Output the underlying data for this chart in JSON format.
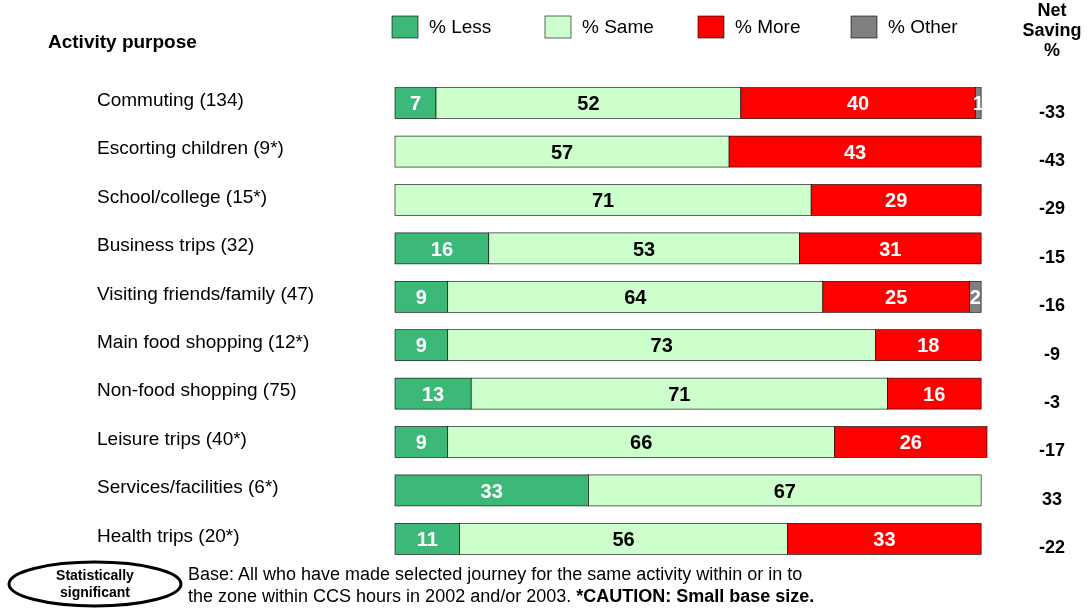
{
  "chart_data": {
    "type": "bar",
    "orientation": "horizontal",
    "stacked": true,
    "ylabel": "Activity purpose",
    "categories": [
      "Commuting (134)",
      "Escorting children (9*)",
      "School/college (15*)",
      "Business trips (32)",
      "Visiting friends/family (47)",
      "Main food shopping (12*)",
      "Non-food shopping (75)",
      "Leisure trips  (40*)",
      "Services/facilities (6*)",
      "Health trips (20*)"
    ],
    "xlim": [
      0,
      101
    ],
    "tick_labels": "y",
    "legend": "top",
    "data_labels": true,
    "series": [
      {
        "name": "% Less",
        "color": "#3cb878",
        "values": [
          7,
          null,
          null,
          16,
          9,
          9,
          13,
          9,
          33,
          11
        ]
      },
      {
        "name": "% Same",
        "color": "#ccffcc",
        "values": [
          52,
          57,
          71,
          53,
          64,
          73,
          71,
          66,
          67,
          56
        ]
      },
      {
        "name": "% More",
        "color": "#ff0000",
        "values": [
          40,
          43,
          29,
          31,
          25,
          18,
          16,
          26,
          null,
          33
        ]
      },
      {
        "name": "% Other",
        "color": "#808080",
        "values": [
          1,
          null,
          null,
          null,
          2,
          null,
          null,
          null,
          null,
          null
        ]
      }
    ],
    "annotations": [
      "Net Saving %",
      "Statistically significant",
      "Base: All who have made selected journey for the same activity within or in to the zone within CCS hours in 2002 and/or 2003.",
      "*CAUTION: Small base size.",
      "-33",
      "-43",
      "-29",
      "-15",
      "-16",
      "-9",
      "-3",
      "-17",
      "33",
      "-22"
    ]
  }
}
